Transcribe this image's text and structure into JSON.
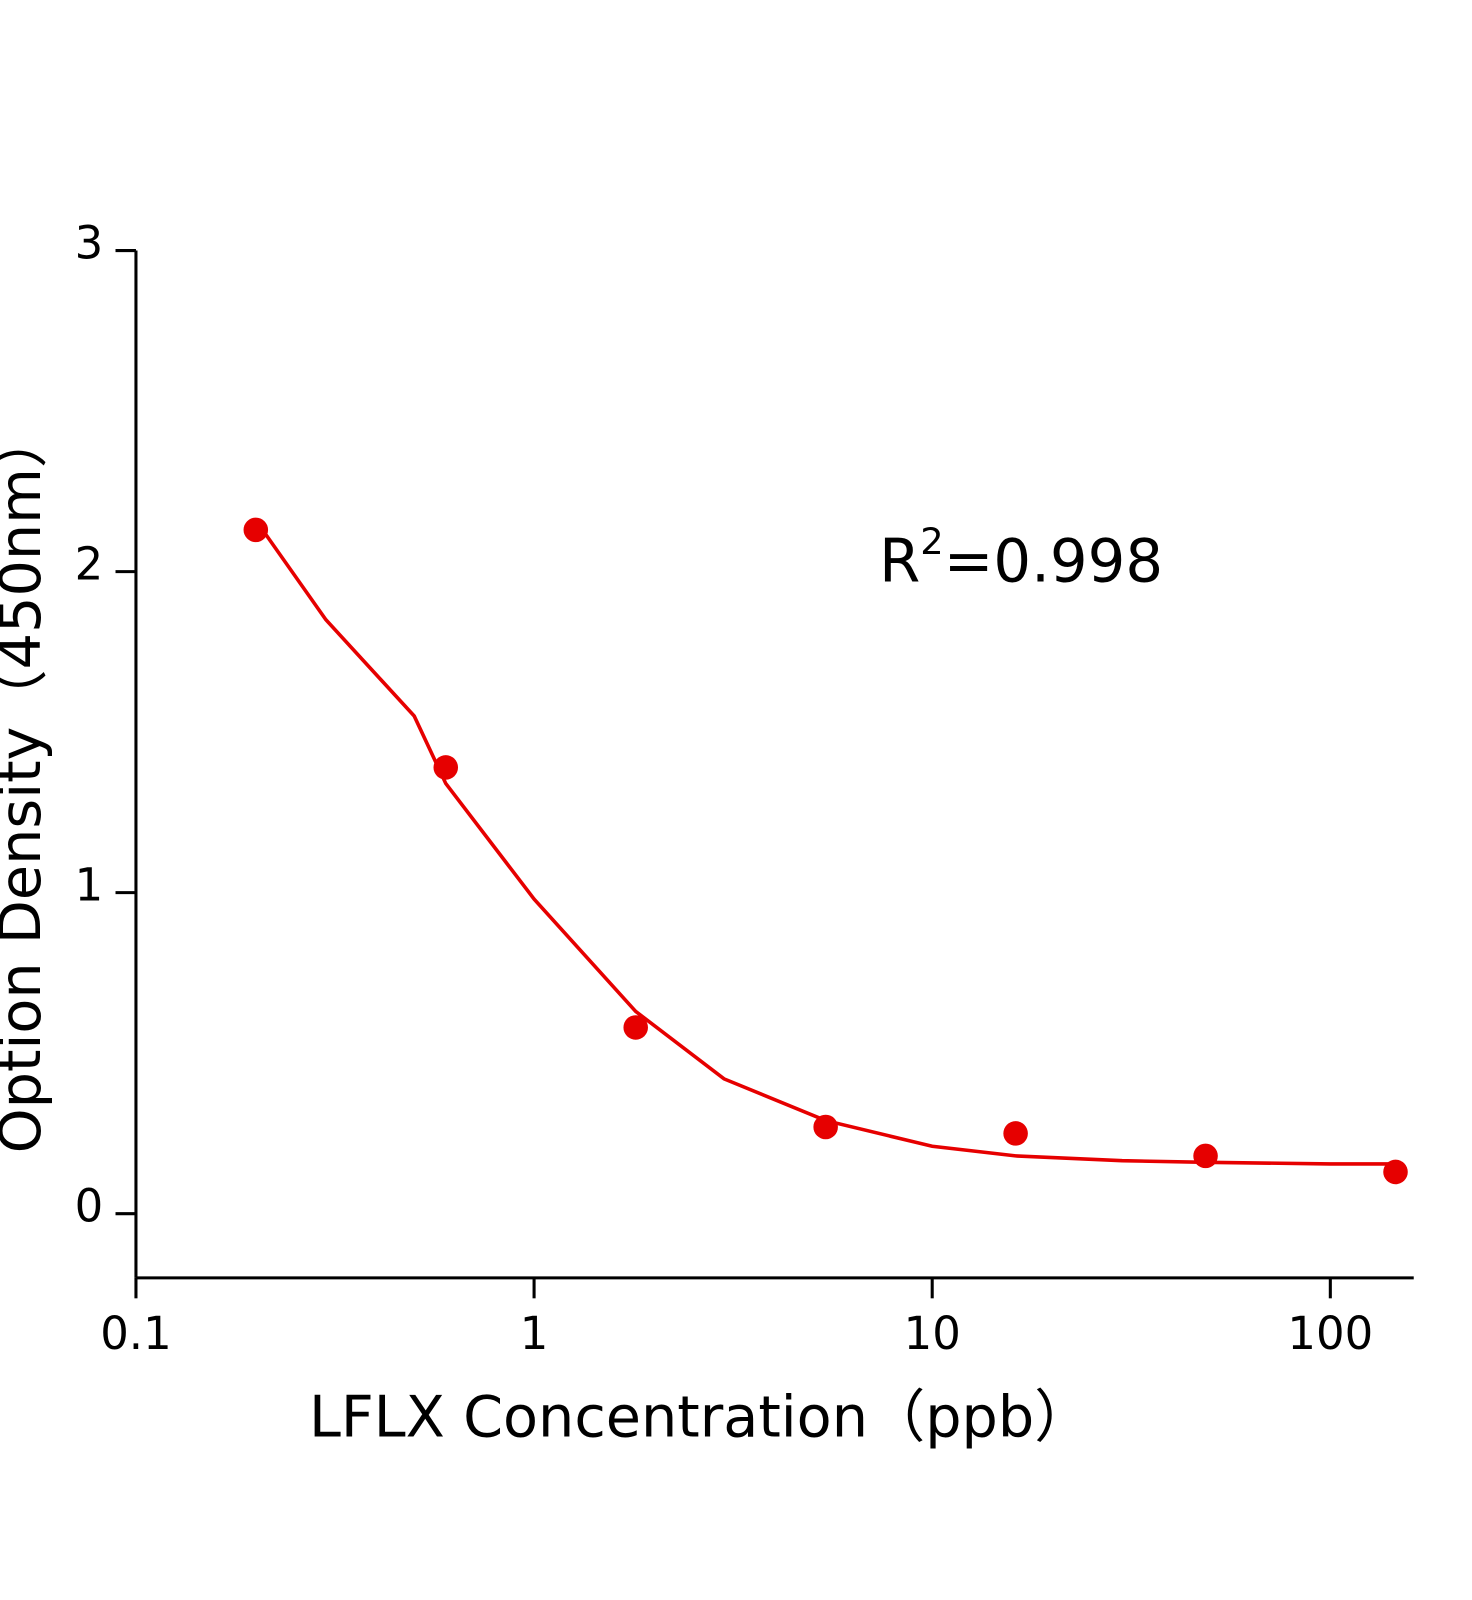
{
  "chart_data": {
    "type": "scatter",
    "x_label": "LFLX Concentration（ppb）",
    "y_label": "Option Density（450nm）",
    "annotation": [
      "R",
      "2",
      "=0.998"
    ],
    "xlog": true,
    "xlim": [
      0.1,
      162
    ],
    "xticks": [
      0.1,
      1,
      10,
      100
    ],
    "ylim": [
      -0.2,
      3
    ],
    "yticks": [
      0,
      1,
      2,
      3
    ],
    "series": [
      {
        "style": "markers",
        "color": "#e60000",
        "x": [
          0.2,
          0.6,
          1.8,
          5.4,
          16.2,
          48.6,
          145.8
        ],
        "values": [
          2.13,
          1.39,
          0.58,
          0.27,
          0.25,
          0.18,
          0.13
        ]
      },
      {
        "style": "line",
        "color": "#e60000",
        "x": [
          0.2,
          0.3,
          0.5,
          0.6,
          1,
          1.8,
          3,
          5.4,
          10,
          16.2,
          30,
          48.6,
          100,
          145.8
        ],
        "values": [
          2.16,
          1.85,
          1.55,
          1.34,
          0.98,
          0.63,
          0.42,
          0.29,
          0.21,
          0.18,
          0.165,
          0.16,
          0.155,
          0.155
        ]
      }
    ]
  }
}
